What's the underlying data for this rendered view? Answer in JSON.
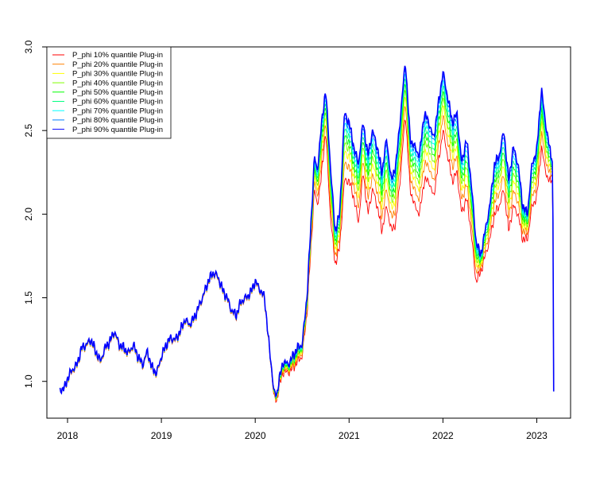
{
  "chart_data": {
    "type": "line",
    "title": "",
    "xlabel": "",
    "ylabel": "",
    "xlim": [
      2017.78,
      2023.36
    ],
    "ylim": [
      0.78,
      3.0
    ],
    "x_ticks": [
      "2018",
      "2019",
      "2020",
      "2021",
      "2022",
      "2023"
    ],
    "y_ticks": [
      "1.0",
      "1.5",
      "2.0",
      "2.5",
      "3.0"
    ],
    "grid": false,
    "legend_position": "top-left",
    "series_colors": [
      "#ff0000",
      "#ff8000",
      "#ffff00",
      "#80ff00",
      "#00ff00",
      "#00ff80",
      "#00ffff",
      "#0080ff",
      "#0000ff"
    ],
    "series": [
      {
        "name": "P_phi 10% quantile Plug-in",
        "offset": 0.0
      },
      {
        "name": "P_phi 20% quantile Plug-in",
        "offset": 0.25
      },
      {
        "name": "P_phi 30% quantile Plug-in",
        "offset": 0.42
      },
      {
        "name": "P_phi 40% quantile Plug-in",
        "offset": 0.55
      },
      {
        "name": "P_phi 50% quantile Plug-in",
        "offset": 0.66
      },
      {
        "name": "P_phi 60% quantile Plug-in",
        "offset": 0.76
      },
      {
        "name": "P_phi 70% quantile Plug-in",
        "offset": 0.85
      },
      {
        "name": "P_phi 80% quantile Plug-in",
        "offset": 0.93
      },
      {
        "name": "P_phi 90% quantile Plug-in",
        "offset": 1.0
      }
    ],
    "upper_curve": {
      "x": [
        2017.92,
        2017.97,
        2018.0,
        2018.05,
        2018.1,
        2018.15,
        2018.2,
        2018.25,
        2018.3,
        2018.35,
        2018.4,
        2018.45,
        2018.5,
        2018.55,
        2018.6,
        2018.65,
        2018.7,
        2018.75,
        2018.8,
        2018.85,
        2018.9,
        2018.95,
        2019.0,
        2019.05,
        2019.1,
        2019.15,
        2019.2,
        2019.25,
        2019.3,
        2019.35,
        2019.4,
        2019.45,
        2019.5,
        2019.55,
        2019.6,
        2019.65,
        2019.7,
        2019.75,
        2019.8,
        2019.85,
        2019.9,
        2019.95,
        2020.0,
        2020.05,
        2020.1,
        2020.15,
        2020.18,
        2020.2,
        2020.23,
        2020.25,
        2020.3,
        2020.35,
        2020.4,
        2020.45,
        2020.5,
        2020.55,
        2020.6,
        2020.63,
        2020.66,
        2020.7,
        2020.75,
        2020.8,
        2020.85,
        2020.9,
        2020.95,
        2021.0,
        2021.05,
        2021.1,
        2021.15,
        2021.2,
        2021.25,
        2021.3,
        2021.35,
        2021.4,
        2021.45,
        2021.5,
        2021.55,
        2021.6,
        2021.65,
        2021.7,
        2021.75,
        2021.8,
        2021.85,
        2021.9,
        2021.95,
        2022.0,
        2022.05,
        2022.1,
        2022.15,
        2022.2,
        2022.25,
        2022.3,
        2022.35,
        2022.4,
        2022.45,
        2022.5,
        2022.55,
        2022.6,
        2022.65,
        2022.7,
        2022.75,
        2022.8,
        2022.85,
        2022.9,
        2022.95,
        2023.0,
        2023.05,
        2023.08,
        2023.12,
        2023.15,
        2023.17,
        2023.18
      ],
      "y": [
        0.95,
        0.96,
        1.02,
        1.07,
        1.1,
        1.2,
        1.22,
        1.25,
        1.18,
        1.12,
        1.2,
        1.24,
        1.3,
        1.22,
        1.2,
        1.17,
        1.22,
        1.15,
        1.1,
        1.18,
        1.08,
        1.05,
        1.15,
        1.22,
        1.26,
        1.25,
        1.3,
        1.37,
        1.34,
        1.38,
        1.45,
        1.52,
        1.6,
        1.65,
        1.63,
        1.55,
        1.5,
        1.42,
        1.4,
        1.48,
        1.5,
        1.53,
        1.6,
        1.55,
        1.5,
        1.2,
        1.05,
        0.93,
        0.92,
        1.0,
        1.12,
        1.1,
        1.15,
        1.2,
        1.22,
        1.5,
        2.0,
        2.35,
        2.25,
        2.5,
        2.75,
        2.3,
        1.9,
        2.0,
        2.6,
        2.55,
        2.4,
        2.3,
        2.55,
        2.35,
        2.5,
        2.4,
        2.25,
        2.45,
        2.2,
        2.3,
        2.6,
        2.92,
        2.45,
        2.4,
        2.35,
        2.6,
        2.55,
        2.45,
        2.65,
        2.85,
        2.7,
        2.55,
        2.6,
        2.3,
        2.45,
        2.2,
        1.85,
        1.75,
        1.9,
        2.05,
        2.3,
        2.35,
        2.5,
        2.2,
        2.4,
        2.3,
        2.05,
        2.0,
        2.3,
        2.38,
        2.75,
        2.6,
        2.45,
        2.35,
        2.3,
        0.94
      ]
    },
    "lower_curve": {
      "x": [
        2017.92,
        2017.97,
        2018.0,
        2018.05,
        2018.1,
        2018.15,
        2018.2,
        2018.25,
        2018.3,
        2018.35,
        2018.4,
        2018.45,
        2018.5,
        2018.55,
        2018.6,
        2018.65,
        2018.7,
        2018.75,
        2018.8,
        2018.85,
        2018.9,
        2018.95,
        2019.0,
        2019.05,
        2019.1,
        2019.15,
        2019.2,
        2019.25,
        2019.3,
        2019.35,
        2019.4,
        2019.45,
        2019.5,
        2019.55,
        2019.6,
        2019.65,
        2019.7,
        2019.75,
        2019.8,
        2019.85,
        2019.9,
        2019.95,
        2020.0,
        2020.05,
        2020.1,
        2020.15,
        2020.18,
        2020.2,
        2020.23,
        2020.25,
        2020.3,
        2020.35,
        2020.4,
        2020.45,
        2020.5,
        2020.55,
        2020.6,
        2020.63,
        2020.66,
        2020.7,
        2020.75,
        2020.8,
        2020.85,
        2020.9,
        2020.95,
        2021.0,
        2021.05,
        2021.1,
        2021.15,
        2021.2,
        2021.25,
        2021.3,
        2021.35,
        2021.4,
        2021.45,
        2021.5,
        2021.55,
        2021.6,
        2021.65,
        2021.7,
        2021.75,
        2021.8,
        2021.85,
        2021.9,
        2021.95,
        2022.0,
        2022.05,
        2022.1,
        2022.15,
        2022.2,
        2022.25,
        2022.3,
        2022.35,
        2022.4,
        2022.45,
        2022.5,
        2022.55,
        2022.6,
        2022.65,
        2022.7,
        2022.75,
        2022.8,
        2022.85,
        2022.9,
        2022.95,
        2023.0,
        2023.05,
        2023.08,
        2023.12,
        2023.15,
        2023.17,
        2023.18
      ],
      "y": [
        0.95,
        0.96,
        1.01,
        1.06,
        1.09,
        1.19,
        1.21,
        1.24,
        1.17,
        1.11,
        1.19,
        1.23,
        1.29,
        1.21,
        1.19,
        1.16,
        1.21,
        1.14,
        1.09,
        1.17,
        1.07,
        1.04,
        1.14,
        1.21,
        1.25,
        1.24,
        1.29,
        1.36,
        1.33,
        1.37,
        1.44,
        1.51,
        1.59,
        1.64,
        1.62,
        1.54,
        1.49,
        1.41,
        1.39,
        1.47,
        1.49,
        1.52,
        1.59,
        1.54,
        1.49,
        1.19,
        1.03,
        0.9,
        0.88,
        0.96,
        1.06,
        1.05,
        1.08,
        1.12,
        1.15,
        1.4,
        1.85,
        2.15,
        2.05,
        2.2,
        2.5,
        2.0,
        1.7,
        1.8,
        2.2,
        2.2,
        2.1,
        1.95,
        2.25,
        2.0,
        2.15,
        2.05,
        1.9,
        2.05,
        1.9,
        1.95,
        2.25,
        2.6,
        2.15,
        2.05,
        2.0,
        2.2,
        2.2,
        2.1,
        2.3,
        2.5,
        2.35,
        2.2,
        2.25,
        2.0,
        2.1,
        1.9,
        1.6,
        1.65,
        1.75,
        1.85,
        2.0,
        2.05,
        2.15,
        1.9,
        2.05,
        2.0,
        1.85,
        1.85,
        2.05,
        2.1,
        2.4,
        2.3,
        2.2,
        2.2,
        2.2,
        0.94
      ]
    }
  }
}
